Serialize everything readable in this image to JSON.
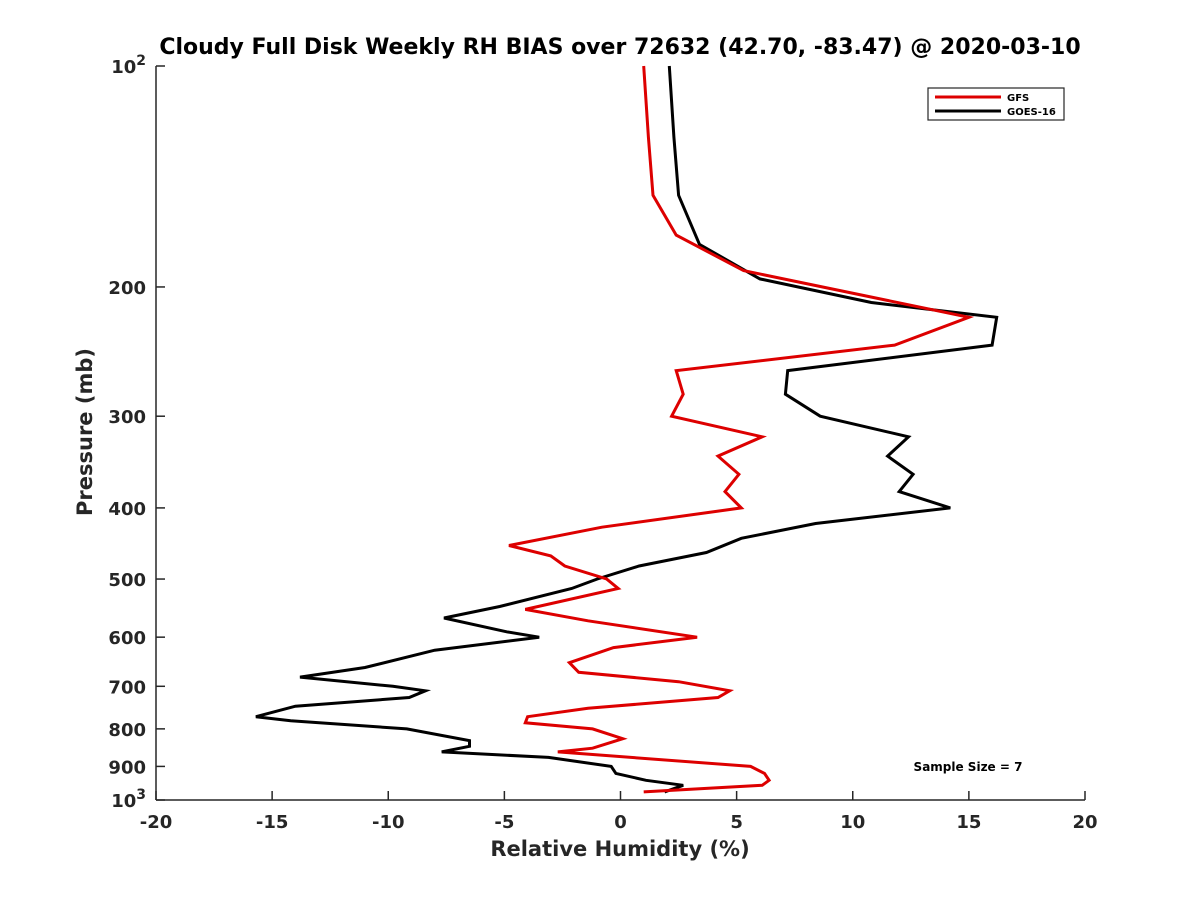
{
  "chart_data": {
    "type": "line",
    "title": "Cloudy Full Disk Weekly RH BIAS over 72632 (42.70, -83.47) @ 2020-03-10",
    "xlabel": "Relative Humidity (%)",
    "ylabel": "Pressure (mb)",
    "xlim": [
      -20,
      20
    ],
    "ylim": [
      100,
      1000
    ],
    "y_scale": "log",
    "y_reversed": true,
    "x_ticks": [
      "-20",
      "-15",
      "-10",
      "-5",
      "0",
      "5",
      "10",
      "15",
      "20"
    ],
    "x_tick_values": [
      -20,
      -15,
      -10,
      -5,
      0,
      5,
      10,
      15,
      20
    ],
    "y_tick_values": [
      100,
      200,
      300,
      400,
      500,
      600,
      700,
      800,
      900,
      1000
    ],
    "y_ticks": [
      {
        "base": "10",
        "exp": "2"
      },
      {
        "base": "200",
        "exp": ""
      },
      {
        "base": "300",
        "exp": ""
      },
      {
        "base": "400",
        "exp": ""
      },
      {
        "base": "500",
        "exp": ""
      },
      {
        "base": "600",
        "exp": ""
      },
      {
        "base": "700",
        "exp": ""
      },
      {
        "base": "800",
        "exp": ""
      },
      {
        "base": "900",
        "exp": ""
      },
      {
        "base": "10",
        "exp": "3"
      }
    ],
    "grid": false,
    "legend_position": "top-right",
    "annotation": "Sample Size = 7",
    "series": [
      {
        "name": "GFS",
        "color": "#dd0000",
        "points": [
          {
            "x": 1.0,
            "y": 100
          },
          {
            "x": 1.2,
            "y": 125
          },
          {
            "x": 1.4,
            "y": 150
          },
          {
            "x": 2.4,
            "y": 170
          },
          {
            "x": 5.3,
            "y": 190
          },
          {
            "x": 15.0,
            "y": 220
          },
          {
            "x": 11.8,
            "y": 240
          },
          {
            "x": 2.4,
            "y": 260
          },
          {
            "x": 2.7,
            "y": 280
          },
          {
            "x": 2.2,
            "y": 300
          },
          {
            "x": 6.1,
            "y": 320
          },
          {
            "x": 4.2,
            "y": 340
          },
          {
            "x": 5.1,
            "y": 360
          },
          {
            "x": 4.5,
            "y": 380
          },
          {
            "x": 5.2,
            "y": 400
          },
          {
            "x": -0.8,
            "y": 425
          },
          {
            "x": -4.8,
            "y": 450
          },
          {
            "x": -3.0,
            "y": 465
          },
          {
            "x": -2.4,
            "y": 480
          },
          {
            "x": -0.6,
            "y": 500
          },
          {
            "x": -0.1,
            "y": 515
          },
          {
            "x": -4.1,
            "y": 550
          },
          {
            "x": -1.4,
            "y": 570
          },
          {
            "x": 3.3,
            "y": 600
          },
          {
            "x": -0.3,
            "y": 620
          },
          {
            "x": -2.2,
            "y": 650
          },
          {
            "x": -1.8,
            "y": 670
          },
          {
            "x": 2.5,
            "y": 690
          },
          {
            "x": 4.7,
            "y": 710
          },
          {
            "x": 4.2,
            "y": 725
          },
          {
            "x": -1.4,
            "y": 750
          },
          {
            "x": -4.0,
            "y": 770
          },
          {
            "x": -4.1,
            "y": 785
          },
          {
            "x": -1.2,
            "y": 800
          },
          {
            "x": 0.1,
            "y": 825
          },
          {
            "x": -1.2,
            "y": 850
          },
          {
            "x": -2.7,
            "y": 860
          },
          {
            "x": 5.6,
            "y": 900
          },
          {
            "x": 6.2,
            "y": 920
          },
          {
            "x": 6.4,
            "y": 940
          },
          {
            "x": 6.1,
            "y": 955
          },
          {
            "x": 1.0,
            "y": 975
          }
        ]
      },
      {
        "name": "GOES-16",
        "color": "#000000",
        "points": [
          {
            "x": 2.1,
            "y": 100
          },
          {
            "x": 2.3,
            "y": 125
          },
          {
            "x": 2.5,
            "y": 150
          },
          {
            "x": 3.4,
            "y": 175
          },
          {
            "x": 6.0,
            "y": 195
          },
          {
            "x": 10.8,
            "y": 210
          },
          {
            "x": 16.2,
            "y": 220
          },
          {
            "x": 16.0,
            "y": 240
          },
          {
            "x": 7.2,
            "y": 260
          },
          {
            "x": 7.1,
            "y": 280
          },
          {
            "x": 8.6,
            "y": 300
          },
          {
            "x": 12.4,
            "y": 320
          },
          {
            "x": 11.5,
            "y": 340
          },
          {
            "x": 12.6,
            "y": 360
          },
          {
            "x": 12.0,
            "y": 380
          },
          {
            "x": 14.2,
            "y": 400
          },
          {
            "x": 8.4,
            "y": 420
          },
          {
            "x": 5.2,
            "y": 440
          },
          {
            "x": 3.7,
            "y": 460
          },
          {
            "x": 0.8,
            "y": 480
          },
          {
            "x": -1.0,
            "y": 500
          },
          {
            "x": -2.1,
            "y": 515
          },
          {
            "x": -5.2,
            "y": 545
          },
          {
            "x": -7.6,
            "y": 565
          },
          {
            "x": -4.9,
            "y": 590
          },
          {
            "x": -3.5,
            "y": 600
          },
          {
            "x": -8.0,
            "y": 625
          },
          {
            "x": -11.0,
            "y": 660
          },
          {
            "x": -13.8,
            "y": 680
          },
          {
            "x": -9.8,
            "y": 700
          },
          {
            "x": -8.4,
            "y": 710
          },
          {
            "x": -9.1,
            "y": 725
          },
          {
            "x": -14.0,
            "y": 745
          },
          {
            "x": -15.7,
            "y": 770
          },
          {
            "x": -14.2,
            "y": 780
          },
          {
            "x": -9.2,
            "y": 800
          },
          {
            "x": -6.5,
            "y": 830
          },
          {
            "x": -6.5,
            "y": 845
          },
          {
            "x": -7.7,
            "y": 860
          },
          {
            "x": -3.1,
            "y": 875
          },
          {
            "x": -0.4,
            "y": 900
          },
          {
            "x": -0.2,
            "y": 920
          },
          {
            "x": 1.1,
            "y": 940
          },
          {
            "x": 2.7,
            "y": 955
          },
          {
            "x": 1.9,
            "y": 975
          }
        ]
      }
    ]
  }
}
